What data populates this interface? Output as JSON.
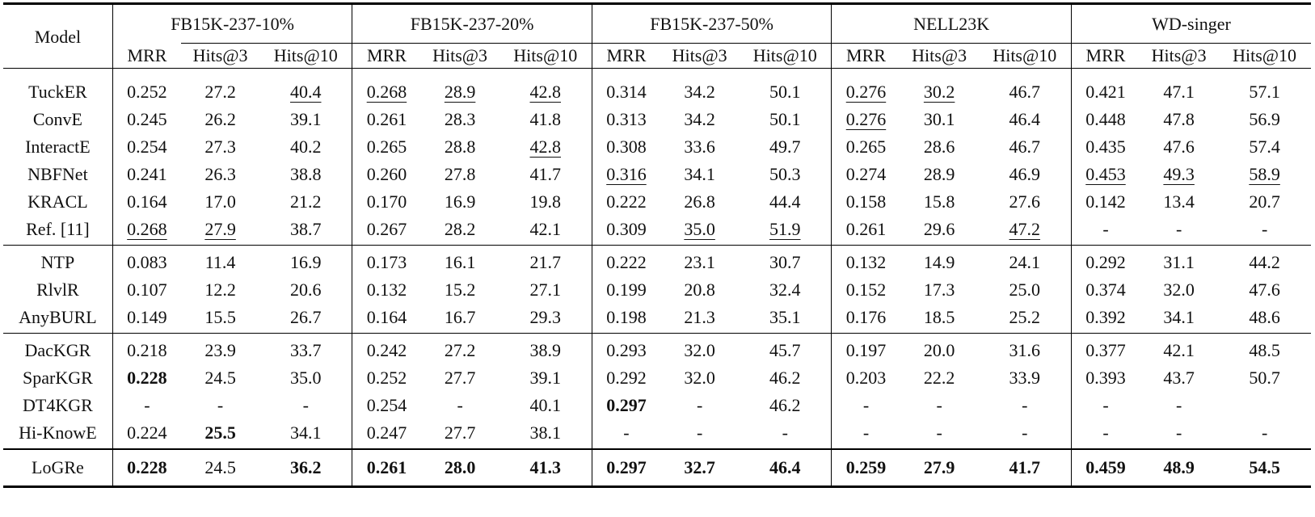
{
  "header": {
    "model_label": "Model",
    "datasets": [
      "FB15K-237-10%",
      "FB15K-237-20%",
      "FB15K-237-50%",
      "NELL23K",
      "WD-singer"
    ],
    "metrics": [
      "MRR",
      "Hits@3",
      "Hits@10"
    ]
  },
  "groups": [
    [
      {
        "model": "TuckER",
        "cells": [
          {
            "v": "0.252"
          },
          {
            "v": "27.2"
          },
          {
            "v": "40.4",
            "u": true
          },
          {
            "v": "0.268",
            "u": true
          },
          {
            "v": "28.9",
            "u": true
          },
          {
            "v": "42.8",
            "u": true
          },
          {
            "v": "0.314"
          },
          {
            "v": "34.2"
          },
          {
            "v": "50.1"
          },
          {
            "v": "0.276",
            "u": true
          },
          {
            "v": "30.2",
            "u": true
          },
          {
            "v": "46.7"
          },
          {
            "v": "0.421"
          },
          {
            "v": "47.1"
          },
          {
            "v": "57.1"
          }
        ]
      },
      {
        "model": "ConvE",
        "cells": [
          {
            "v": "0.245"
          },
          {
            "v": "26.2"
          },
          {
            "v": "39.1"
          },
          {
            "v": "0.261"
          },
          {
            "v": "28.3"
          },
          {
            "v": "41.8"
          },
          {
            "v": "0.313"
          },
          {
            "v": "34.2"
          },
          {
            "v": "50.1"
          },
          {
            "v": "0.276",
            "u": true
          },
          {
            "v": "30.1"
          },
          {
            "v": "46.4"
          },
          {
            "v": "0.448"
          },
          {
            "v": "47.8"
          },
          {
            "v": "56.9"
          }
        ]
      },
      {
        "model": "InteractE",
        "cells": [
          {
            "v": "0.254"
          },
          {
            "v": "27.3"
          },
          {
            "v": "40.2"
          },
          {
            "v": "0.265"
          },
          {
            "v": "28.8"
          },
          {
            "v": "42.8",
            "u": true
          },
          {
            "v": "0.308"
          },
          {
            "v": "33.6"
          },
          {
            "v": "49.7"
          },
          {
            "v": "0.265"
          },
          {
            "v": "28.6"
          },
          {
            "v": "46.7"
          },
          {
            "v": "0.435"
          },
          {
            "v": "47.6"
          },
          {
            "v": "57.4"
          }
        ]
      },
      {
        "model": "NBFNet",
        "cells": [
          {
            "v": "0.241"
          },
          {
            "v": "26.3"
          },
          {
            "v": "38.8"
          },
          {
            "v": "0.260"
          },
          {
            "v": "27.8"
          },
          {
            "v": "41.7"
          },
          {
            "v": "0.316",
            "u": true
          },
          {
            "v": "34.1"
          },
          {
            "v": "50.3"
          },
          {
            "v": "0.274"
          },
          {
            "v": "28.9"
          },
          {
            "v": "46.9"
          },
          {
            "v": "0.453",
            "u": true
          },
          {
            "v": "49.3",
            "u": true
          },
          {
            "v": "58.9",
            "u": true
          }
        ]
      },
      {
        "model": "KRACL",
        "cells": [
          {
            "v": "0.164"
          },
          {
            "v": "17.0"
          },
          {
            "v": "21.2"
          },
          {
            "v": "0.170"
          },
          {
            "v": "16.9"
          },
          {
            "v": "19.8"
          },
          {
            "v": "0.222"
          },
          {
            "v": "26.8"
          },
          {
            "v": "44.4"
          },
          {
            "v": "0.158"
          },
          {
            "v": "15.8"
          },
          {
            "v": "27.6"
          },
          {
            "v": "0.142"
          },
          {
            "v": "13.4"
          },
          {
            "v": "20.7"
          }
        ]
      },
      {
        "model": "Ref. [11]",
        "cells": [
          {
            "v": "0.268",
            "u": true
          },
          {
            "v": "27.9",
            "u": true
          },
          {
            "v": "38.7"
          },
          {
            "v": "0.267"
          },
          {
            "v": "28.2"
          },
          {
            "v": "42.1"
          },
          {
            "v": "0.309"
          },
          {
            "v": "35.0",
            "u": true
          },
          {
            "v": "51.9",
            "u": true
          },
          {
            "v": "0.261"
          },
          {
            "v": "29.6"
          },
          {
            "v": "47.2",
            "u": true
          },
          {
            "v": "-"
          },
          {
            "v": "-"
          },
          {
            "v": "-"
          }
        ]
      }
    ],
    [
      {
        "model": "NTP",
        "cells": [
          {
            "v": "0.083"
          },
          {
            "v": "11.4"
          },
          {
            "v": "16.9"
          },
          {
            "v": "0.173"
          },
          {
            "v": "16.1"
          },
          {
            "v": "21.7"
          },
          {
            "v": "0.222"
          },
          {
            "v": "23.1"
          },
          {
            "v": "30.7"
          },
          {
            "v": "0.132"
          },
          {
            "v": "14.9"
          },
          {
            "v": "24.1"
          },
          {
            "v": "0.292"
          },
          {
            "v": "31.1"
          },
          {
            "v": "44.2"
          }
        ]
      },
      {
        "model": "RlvlR",
        "cells": [
          {
            "v": "0.107"
          },
          {
            "v": "12.2"
          },
          {
            "v": "20.6"
          },
          {
            "v": "0.132"
          },
          {
            "v": "15.2"
          },
          {
            "v": "27.1"
          },
          {
            "v": "0.199"
          },
          {
            "v": "20.8"
          },
          {
            "v": "32.4"
          },
          {
            "v": "0.152"
          },
          {
            "v": "17.3"
          },
          {
            "v": "25.0"
          },
          {
            "v": "0.374"
          },
          {
            "v": "32.0"
          },
          {
            "v": "47.6"
          }
        ]
      },
      {
        "model": "AnyBURL",
        "cells": [
          {
            "v": "0.149"
          },
          {
            "v": "15.5"
          },
          {
            "v": "26.7"
          },
          {
            "v": "0.164"
          },
          {
            "v": "16.7"
          },
          {
            "v": "29.3"
          },
          {
            "v": "0.198"
          },
          {
            "v": "21.3"
          },
          {
            "v": "35.1"
          },
          {
            "v": "0.176"
          },
          {
            "v": "18.5"
          },
          {
            "v": "25.2"
          },
          {
            "v": "0.392"
          },
          {
            "v": "34.1"
          },
          {
            "v": "48.6"
          }
        ]
      }
    ],
    [
      {
        "model": "DacKGR",
        "cells": [
          {
            "v": "0.218"
          },
          {
            "v": "23.9"
          },
          {
            "v": "33.7"
          },
          {
            "v": "0.242"
          },
          {
            "v": "27.2"
          },
          {
            "v": "38.9"
          },
          {
            "v": "0.293"
          },
          {
            "v": "32.0"
          },
          {
            "v": "45.7"
          },
          {
            "v": "0.197"
          },
          {
            "v": "20.0"
          },
          {
            "v": "31.6"
          },
          {
            "v": "0.377"
          },
          {
            "v": "42.1"
          },
          {
            "v": "48.5"
          }
        ]
      },
      {
        "model": "SparKGR",
        "cells": [
          {
            "v": "0.228",
            "b": true
          },
          {
            "v": "24.5"
          },
          {
            "v": "35.0"
          },
          {
            "v": "0.252"
          },
          {
            "v": "27.7"
          },
          {
            "v": "39.1"
          },
          {
            "v": "0.292"
          },
          {
            "v": "32.0"
          },
          {
            "v": "46.2"
          },
          {
            "v": "0.203"
          },
          {
            "v": "22.2"
          },
          {
            "v": "33.9"
          },
          {
            "v": "0.393"
          },
          {
            "v": "43.7"
          },
          {
            "v": "50.7"
          }
        ]
      },
      {
        "model": "DT4KGR",
        "cells": [
          {
            "v": "-"
          },
          {
            "v": "-"
          },
          {
            "v": "-"
          },
          {
            "v": "0.254"
          },
          {
            "v": "-"
          },
          {
            "v": "40.1"
          },
          {
            "v": "0.297",
            "b": true
          },
          {
            "v": "-"
          },
          {
            "v": "46.2"
          },
          {
            "v": "-"
          },
          {
            "v": "-"
          },
          {
            "v": "-"
          },
          {
            "v": "-"
          },
          {
            "v": "-"
          },
          {
            "v": ""
          }
        ]
      },
      {
        "model": "Hi-KnowE",
        "cells": [
          {
            "v": "0.224"
          },
          {
            "v": "25.5",
            "b": true
          },
          {
            "v": "34.1"
          },
          {
            "v": "0.247"
          },
          {
            "v": "27.7"
          },
          {
            "v": "38.1"
          },
          {
            "v": "-"
          },
          {
            "v": "-"
          },
          {
            "v": "-"
          },
          {
            "v": "-"
          },
          {
            "v": "-"
          },
          {
            "v": "-"
          },
          {
            "v": "-"
          },
          {
            "v": "-"
          },
          {
            "v": "-"
          }
        ]
      }
    ]
  ],
  "final": {
    "model": "LoGRe",
    "cells": [
      {
        "v": "0.228",
        "b": true
      },
      {
        "v": "24.5"
      },
      {
        "v": "36.2",
        "b": true
      },
      {
        "v": "0.261",
        "b": true
      },
      {
        "v": "28.0",
        "b": true
      },
      {
        "v": "41.3",
        "b": true
      },
      {
        "v": "0.297",
        "b": true
      },
      {
        "v": "32.7",
        "b": true
      },
      {
        "v": "46.4",
        "b": true
      },
      {
        "v": "0.259",
        "b": true
      },
      {
        "v": "27.9",
        "b": true
      },
      {
        "v": "41.7",
        "b": true
      },
      {
        "v": "0.459",
        "b": true
      },
      {
        "v": "48.9",
        "b": true
      },
      {
        "v": "54.5",
        "b": true
      }
    ]
  }
}
